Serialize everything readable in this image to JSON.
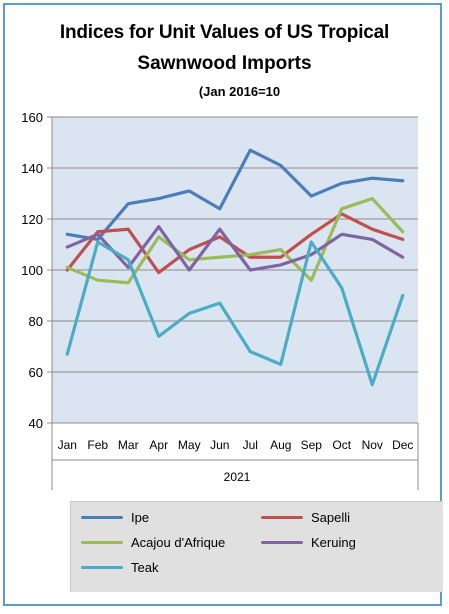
{
  "title_line1": "Indices for Unit Values of US Tropical",
  "title_line2": "Sawnwood Imports",
  "subtitle": "(Jan 2016=10",
  "chart_data": {
    "type": "line",
    "title": "Indices for Unit Values of US Tropical Sawnwood Imports",
    "subtitle": "(Jan 2016=10",
    "categories": [
      "Jan",
      "Feb",
      "Mar",
      "Apr",
      "May",
      "Jun",
      "Jul",
      "Aug",
      "Sep",
      "Oct",
      "Nov",
      "Dec"
    ],
    "xlabel": "2021",
    "ylabel": "",
    "ylim": [
      40,
      160
    ],
    "yticks": [
      40,
      60,
      80,
      100,
      120,
      140,
      160
    ],
    "grid": true,
    "legend_position": "bottom",
    "series": [
      {
        "name": "Ipe",
        "color": "#4a7ebb",
        "values": [
          114,
          112,
          126,
          128,
          131,
          124,
          147,
          141,
          129,
          134,
          136,
          135
        ]
      },
      {
        "name": "Sapelli",
        "color": "#c0504d",
        "values": [
          100,
          115,
          116,
          99,
          108,
          113,
          105,
          105,
          114,
          122,
          116,
          112
        ]
      },
      {
        "name": "Acajou d'Afrique",
        "color": "#9bbb59",
        "values": [
          101,
          96,
          95,
          113,
          104,
          105,
          106,
          108,
          96,
          124,
          128,
          115
        ]
      },
      {
        "name": "Keruing",
        "color": "#8064a2",
        "values": [
          109,
          114,
          101,
          117,
          100,
          116,
          100,
          102,
          106,
          114,
          112,
          105
        ]
      },
      {
        "name": "Teak",
        "color": "#4bacc6",
        "values": [
          67,
          111,
          104,
          74,
          83,
          87,
          68,
          63,
          111,
          93,
          55,
          90
        ]
      }
    ]
  }
}
